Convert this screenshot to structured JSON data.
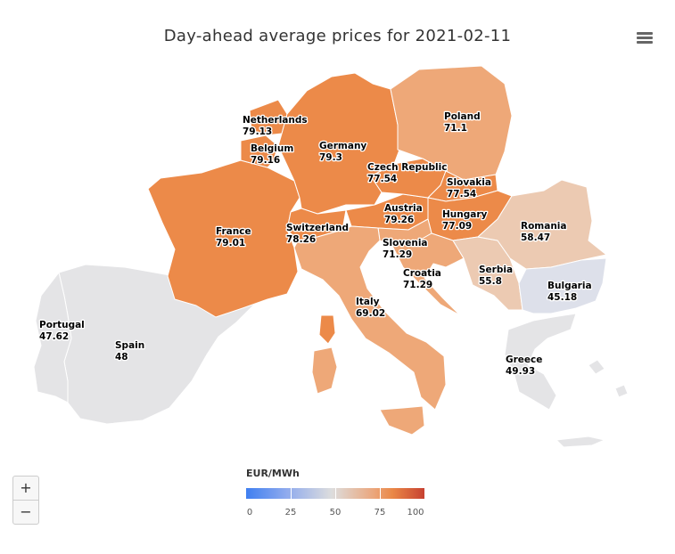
{
  "title": "Day-ahead average prices for 2021-02-11",
  "legend": {
    "title": "EUR/MWh",
    "min": 0,
    "max": 100,
    "ticks": [
      "0",
      "25",
      "50",
      "75",
      "100"
    ],
    "colors": [
      "#3f7ff0",
      "#dddddd",
      "#ea8847",
      "#c74131"
    ]
  },
  "zoom": {
    "in_label": "+",
    "out_label": "−"
  },
  "menu_icon": "hamburger-icon",
  "countries": {
    "netherlands": {
      "name": "Netherlands",
      "price": "79.13"
    },
    "belgium": {
      "name": "Belgium",
      "price": "79.16"
    },
    "germany": {
      "name": "Germany",
      "price": "79.3"
    },
    "poland": {
      "name": "Poland",
      "price": "71.1"
    },
    "czech": {
      "name": "Czech Republic",
      "price": "77.54"
    },
    "slovakia": {
      "name": "Slovakia",
      "price": "77.54"
    },
    "austria": {
      "name": "Austria",
      "price": "79.26"
    },
    "hungary": {
      "name": "Hungary",
      "price": "77.09"
    },
    "switzerland": {
      "name": "Switzerland",
      "price": "78.26"
    },
    "france": {
      "name": "France",
      "price": "79.01"
    },
    "slovenia": {
      "name": "Slovenia",
      "price": "71.29"
    },
    "croatia": {
      "name": "Croatia",
      "price": "71.29"
    },
    "romania": {
      "name": "Romania",
      "price": "58.47"
    },
    "serbia": {
      "name": "Serbia",
      "price": "55.8"
    },
    "bulgaria": {
      "name": "Bulgaria",
      "price": "45.18"
    },
    "italy": {
      "name": "Italy",
      "price": "69.02"
    },
    "greece": {
      "name": "Greece",
      "price": "49.93"
    },
    "portugal": {
      "name": "Portugal",
      "price": "47.62"
    },
    "spain": {
      "name": "Spain",
      "price": "48"
    }
  },
  "colors": {
    "high": "#ec8a49",
    "mid_high": "#eea878",
    "mid": "#eccab2",
    "low_mid": "#dde0ea",
    "none": "#e4e4e6"
  }
}
